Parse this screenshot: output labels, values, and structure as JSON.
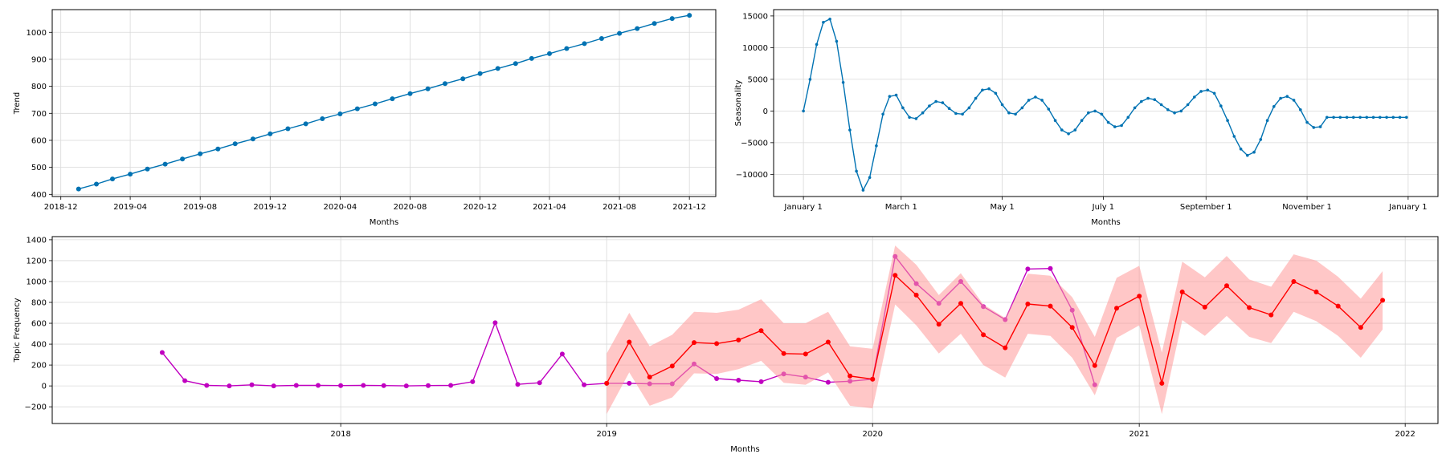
{
  "chart_data": [
    {
      "type": "line",
      "xlabel": "Months",
      "ylabel": "Trend",
      "x_ticks": [
        "2018-12",
        "2019-04",
        "2019-08",
        "2019-12",
        "2020-04",
        "2020-08",
        "2020-12",
        "2021-04",
        "2021-08",
        "2021-12"
      ],
      "y_ticks": [
        400,
        500,
        600,
        700,
        800,
        900,
        1000
      ],
      "xlim": [
        "2018-11-16",
        "2022-01-16"
      ],
      "ylim": [
        392,
        1084
      ],
      "grid": true,
      "colors": {
        "line": "#0072B2"
      },
      "series": [
        {
          "x": [
            "2019-01-01",
            "2019-02-01",
            "2019-03-01",
            "2019-04-01",
            "2019-05-01",
            "2019-06-01",
            "2019-07-01",
            "2019-08-01",
            "2019-09-01",
            "2019-10-01",
            "2019-11-01",
            "2019-12-01",
            "2020-01-01",
            "2020-02-01",
            "2020-03-01",
            "2020-04-01",
            "2020-05-01",
            "2020-06-01",
            "2020-07-01",
            "2020-08-01",
            "2020-09-01",
            "2020-10-01",
            "2020-11-01",
            "2020-12-01",
            "2021-01-01",
            "2021-02-01",
            "2021-03-01",
            "2021-04-01",
            "2021-05-01",
            "2021-06-01",
            "2021-07-01",
            "2021-08-01",
            "2021-09-01",
            "2021-10-01",
            "2021-11-01",
            "2021-12-01"
          ],
          "values": [
            420,
            438,
            457,
            475,
            494,
            512,
            531,
            550,
            568,
            587,
            605,
            624,
            643,
            661,
            680,
            698,
            717,
            735,
            754,
            773,
            791,
            810,
            828,
            847,
            866,
            884,
            903,
            921,
            940,
            958,
            977,
            996,
            1014,
            1033,
            1051,
            1063
          ]
        }
      ]
    },
    {
      "type": "line",
      "xlabel": "Months",
      "ylabel": "Seasonality",
      "x_ticks": [
        "January 1",
        "March 1",
        "May 1",
        "July 1",
        "September 1",
        "November 1",
        "January 1"
      ],
      "y_ticks": [
        -10000,
        -5000,
        0,
        5000,
        10000,
        15000
      ],
      "xlim": [
        -18,
        383
      ],
      "ylim": [
        -13500,
        16000
      ],
      "grid": true,
      "colors": {
        "line": "#0072B2"
      },
      "series": [
        {
          "x": [
            0,
            4,
            8,
            12,
            16,
            20,
            24,
            28,
            32,
            36,
            40,
            44,
            48,
            52,
            56,
            60,
            64,
            68,
            72,
            76,
            80,
            84,
            88,
            92,
            96,
            100,
            104,
            108,
            112,
            116,
            120,
            124,
            128,
            132,
            136,
            140,
            144,
            148,
            152,
            156,
            160,
            164,
            168,
            172,
            176,
            180,
            184,
            188,
            192,
            196,
            200,
            204,
            208,
            212,
            216,
            220,
            224,
            228,
            232,
            236,
            240,
            244,
            248,
            252,
            256,
            260,
            264,
            268,
            272,
            276,
            280,
            284,
            288,
            292,
            296,
            300,
            304,
            308,
            312,
            316,
            320,
            324,
            328,
            332,
            336,
            340,
            344,
            348,
            352,
            356,
            360,
            364
          ],
          "values": [
            0,
            5000,
            10500,
            14000,
            14500,
            11000,
            4500,
            -3000,
            -9500,
            -12500,
            -10500,
            -5500,
            -500,
            2300,
            2500,
            500,
            -1000,
            -1200,
            -300,
            800,
            1500,
            1300,
            400,
            -400,
            -500,
            500,
            2000,
            3300,
            3500,
            2800,
            1000,
            -300,
            -500,
            500,
            1700,
            2200,
            1700,
            300,
            -1500,
            -3000,
            -3600,
            -3000,
            -1500,
            -300,
            0,
            -500,
            -1800,
            -2500,
            -2300,
            -1000,
            500,
            1500,
            2000,
            1800,
            1000,
            200,
            -300,
            0,
            1000,
            2200,
            3100,
            3300,
            2800,
            800,
            -1500,
            -4000,
            -6000,
            -7000,
            -6500,
            -4500,
            -1500,
            700,
            2000,
            2300,
            1700,
            200,
            -1800,
            -2600,
            -2500,
            -1000,
            -1000,
            -1000,
            -1000,
            -1000,
            -1000,
            -1000,
            -1000,
            -1000,
            -1000,
            -1000,
            -1000,
            -1000
          ]
        }
      ]
    },
    {
      "type": "line",
      "xlabel": "Months",
      "ylabel": "Topic Frequency",
      "x_ticks": [
        "2018",
        "2019",
        "2020",
        "2021",
        "2022"
      ],
      "y_ticks": [
        -200,
        0,
        200,
        400,
        600,
        800,
        1000,
        1200,
        1400
      ],
      "xlim": [
        "2016-12-01",
        "2022-02-15"
      ],
      "ylim": [
        -360,
        1430
      ],
      "grid": true,
      "colors": {
        "actual": "#C000C0",
        "forecast": "#FF0000",
        "band": "#FF9999"
      },
      "series": [
        {
          "role": "actual",
          "x": [
            "2017-05-01",
            "2017-06-01",
            "2017-07-01",
            "2017-08-01",
            "2017-09-01",
            "2017-10-01",
            "2017-11-01",
            "2017-12-01",
            "2018-01-01",
            "2018-02-01",
            "2018-03-01",
            "2018-04-01",
            "2018-05-01",
            "2018-06-01",
            "2018-07-01",
            "2018-08-01",
            "2018-09-01",
            "2018-10-01",
            "2018-11-01",
            "2018-12-01",
            "2019-01-01",
            "2019-02-01",
            "2019-03-01",
            "2019-04-01",
            "2019-05-01",
            "2019-06-01",
            "2019-07-01",
            "2019-08-01",
            "2019-09-01",
            "2019-10-01",
            "2019-11-01",
            "2019-12-01",
            "2020-01-01",
            "2020-02-01",
            "2020-03-01",
            "2020-04-01",
            "2020-05-01",
            "2020-06-01",
            "2020-07-01",
            "2020-08-01",
            "2020-09-01",
            "2020-10-01",
            "2020-11-01"
          ],
          "values": [
            320,
            50,
            5,
            0,
            10,
            0,
            5,
            5,
            3,
            5,
            3,
            0,
            3,
            5,
            40,
            605,
            15,
            30,
            305,
            10,
            25,
            25,
            20,
            20,
            210,
            70,
            55,
            40,
            115,
            85,
            35,
            45,
            65,
            1240,
            980,
            790,
            1000,
            760,
            635,
            1120,
            1125,
            725,
            10
          ]
        },
        {
          "role": "forecast",
          "x": [
            "2019-01-01",
            "2019-02-01",
            "2019-03-01",
            "2019-04-01",
            "2019-05-01",
            "2019-06-01",
            "2019-07-01",
            "2019-08-01",
            "2019-09-01",
            "2019-10-01",
            "2019-11-01",
            "2019-12-01",
            "2020-01-01",
            "2020-02-01",
            "2020-03-01",
            "2020-04-01",
            "2020-05-01",
            "2020-06-01",
            "2020-07-01",
            "2020-08-01",
            "2020-09-01",
            "2020-10-01",
            "2020-11-01",
            "2020-12-01",
            "2021-01-01",
            "2021-02-01",
            "2021-03-01",
            "2021-04-01",
            "2021-05-01",
            "2021-06-01",
            "2021-07-01",
            "2021-08-01",
            "2021-09-01",
            "2021-10-01",
            "2021-11-01",
            "2021-12-01"
          ],
          "values": [
            25,
            420,
            85,
            190,
            415,
            405,
            440,
            530,
            310,
            305,
            420,
            95,
            65,
            1060,
            870,
            590,
            790,
            490,
            365,
            785,
            765,
            560,
            195,
            745,
            860,
            25,
            900,
            755,
            960,
            750,
            680,
            1000,
            900,
            765,
            560,
            820
          ],
          "lower": [
            -270,
            130,
            -190,
            -110,
            120,
            115,
            160,
            240,
            30,
            10,
            130,
            -190,
            -215,
            780,
            580,
            310,
            500,
            200,
            80,
            500,
            480,
            270,
            -90,
            460,
            580,
            -270,
            630,
            480,
            670,
            470,
            410,
            710,
            620,
            480,
            270,
            540
          ],
          "upper": [
            310,
            700,
            380,
            490,
            710,
            700,
            730,
            830,
            600,
            600,
            710,
            380,
            355,
            1345,
            1160,
            870,
            1080,
            780,
            650,
            1075,
            1055,
            850,
            470,
            1035,
            1150,
            320,
            1190,
            1040,
            1245,
            1020,
            950,
            1260,
            1200,
            1045,
            835,
            1100
          ]
        }
      ]
    }
  ]
}
